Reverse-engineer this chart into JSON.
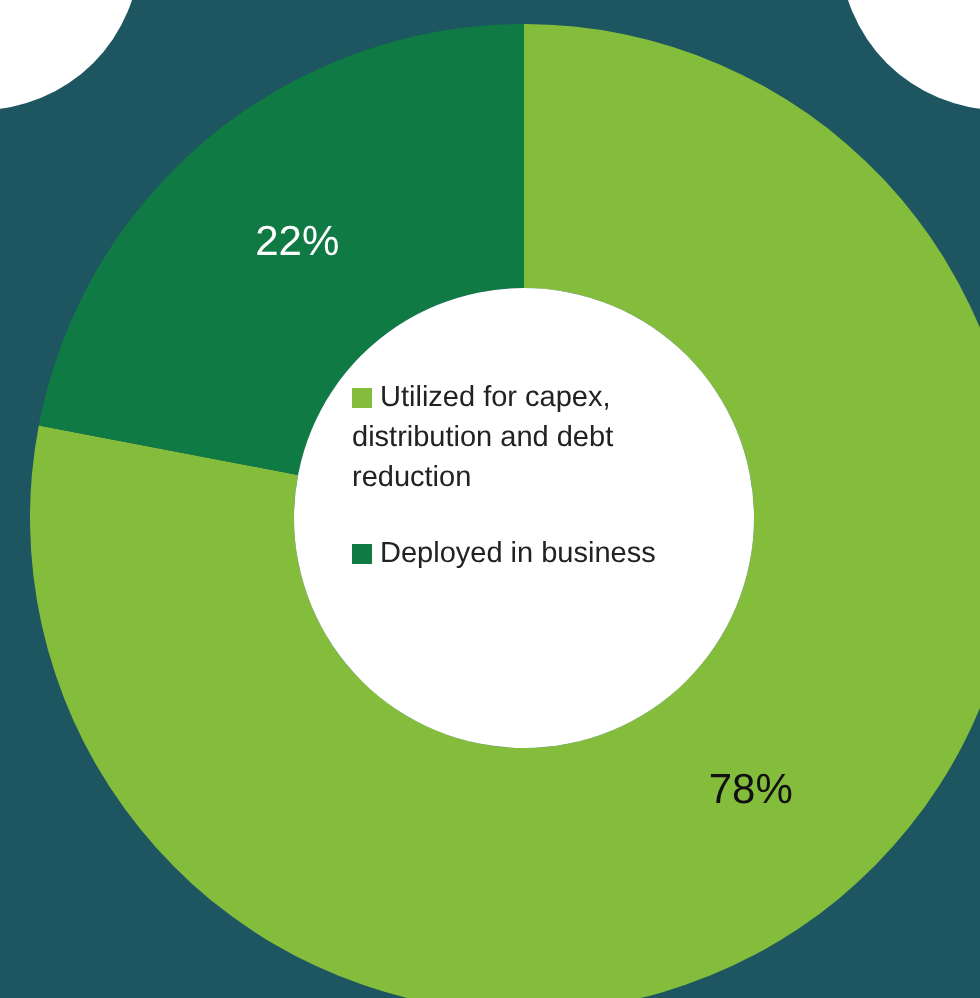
{
  "chart_data": {
    "type": "donut",
    "categories": [
      "Utilized for capex, distribution and debt reduction",
      "Deployed in business"
    ],
    "values": [
      78,
      22
    ],
    "colors": [
      "#84bd3c",
      "#107a45"
    ],
    "value_labels": [
      "78%",
      "22%"
    ],
    "legend": "center"
  }
}
